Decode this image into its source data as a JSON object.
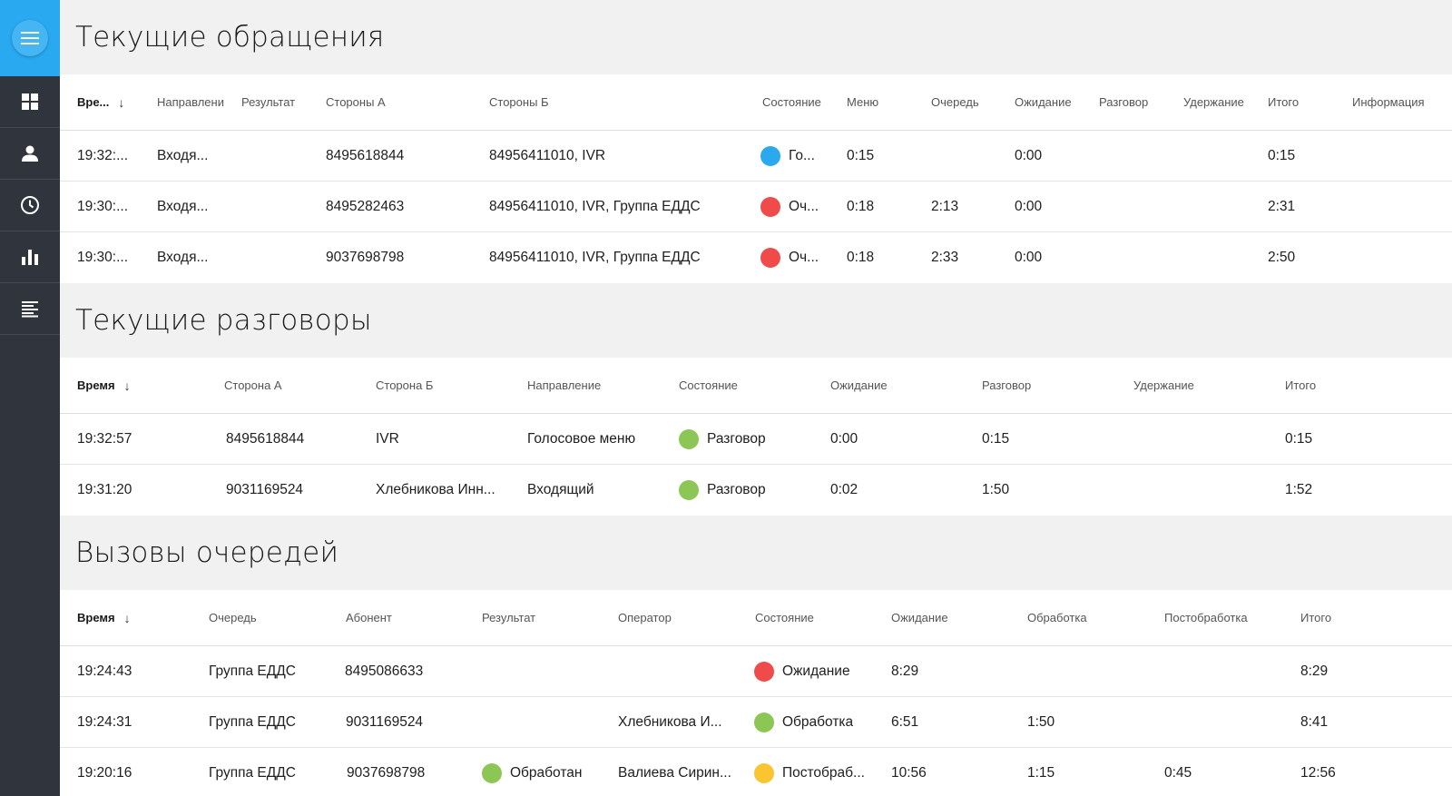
{
  "colors": {
    "accent": "#29a9f0",
    "sidebar": "#30343d",
    "status_blue": "#2aa9ef",
    "status_red": "#ef4b4b",
    "status_green": "#8cc755",
    "status_yellow": "#fbc531"
  },
  "sidebar": {
    "menu_icon": "hamburger-menu-icon",
    "items": [
      {
        "icon": "dashboard-grid-icon"
      },
      {
        "icon": "user-icon"
      },
      {
        "icon": "clock-icon"
      },
      {
        "icon": "bar-chart-icon"
      },
      {
        "icon": "text-lines-icon"
      }
    ]
  },
  "requests": {
    "title": "Текущие обращения",
    "headers": {
      "time": "Вре...",
      "direction": "Направлени",
      "result": "Результат",
      "party_a": "Стороны А",
      "party_b": "Стороны Б",
      "state": "Состояние",
      "menu": "Меню",
      "queue": "Очередь",
      "wait": "Ожидание",
      "talk": "Разговор",
      "hold": "Удержание",
      "total": "Итого",
      "info": "Информация"
    },
    "rows": [
      {
        "time": "19:32:...",
        "direction": "Входя...",
        "result": "",
        "party_a": "8495618844",
        "party_b": "84956411010, IVR",
        "state": "Го...",
        "state_color": "#2aa9ef",
        "menu": "0:15",
        "queue": "",
        "wait": "0:00",
        "talk": "",
        "hold": "",
        "total": "0:15"
      },
      {
        "time": "19:30:...",
        "direction": "Входя...",
        "result": "",
        "party_a": "8495282463",
        "party_b": "84956411010, IVR, Группа ЕДДС",
        "state": "Оч...",
        "state_color": "#ef4b4b",
        "menu": "0:18",
        "queue": "2:13",
        "wait": "0:00",
        "talk": "",
        "hold": "",
        "total": "2:31"
      },
      {
        "time": "19:30:...",
        "direction": "Входя...",
        "result": "",
        "party_a": "9037698798",
        "party_b": "84956411010, IVR, Группа ЕДДС",
        "state": "Оч...",
        "state_color": "#ef4b4b",
        "menu": "0:18",
        "queue": "2:33",
        "wait": "0:00",
        "talk": "",
        "hold": "",
        "total": "2:50"
      }
    ]
  },
  "calls": {
    "title": "Текущие разговоры",
    "headers": {
      "time": "Время",
      "party_a": "Сторона А",
      "party_b": "Сторона Б",
      "direction": "Направление",
      "state": "Состояние",
      "wait": "Ожидание",
      "talk": "Разговор",
      "hold": "Удержание",
      "total": "Итого"
    },
    "rows": [
      {
        "time": "19:32:57",
        "party_a": "8495618844",
        "party_b": "IVR",
        "direction": "Голосовое меню",
        "state": "Разговор",
        "state_color": "#8cc755",
        "wait": "0:00",
        "talk": "0:15",
        "hold": "",
        "total": "0:15"
      },
      {
        "time": "19:31:20",
        "party_a": "9031169524",
        "party_b": "Хлебникова Инн...",
        "direction": "Входящий",
        "state": "Разговор",
        "state_color": "#8cc755",
        "wait": "0:02",
        "talk": "1:50",
        "hold": "",
        "total": "1:52"
      }
    ]
  },
  "queues": {
    "title": "Вызовы очередей",
    "headers": {
      "time": "Время",
      "queue": "Очередь",
      "subscriber": "Абонент",
      "result": "Результат",
      "operator": "Оператор",
      "state": "Состояние",
      "wait": "Ожидание",
      "processing": "Обработка",
      "post": "Постобработка",
      "total": "Итого"
    },
    "rows": [
      {
        "time": "19:24:43",
        "queue": "Группа ЕДДС",
        "subscriber": "8495086633",
        "result": "",
        "result_color": "",
        "operator": "",
        "state": "Ожидание",
        "state_color": "#ef4b4b",
        "wait": "8:29",
        "processing": "",
        "post": "",
        "total": "8:29"
      },
      {
        "time": "19:24:31",
        "queue": "Группа ЕДДС",
        "subscriber": "9031169524",
        "result": "",
        "result_color": "",
        "operator": "Хлебникова И...",
        "state": "Обработка",
        "state_color": "#8cc755",
        "wait": "6:51",
        "processing": "1:50",
        "post": "",
        "total": "8:41"
      },
      {
        "time": "19:20:16",
        "queue": "Группа ЕДДС",
        "subscriber": "9037698798",
        "result": "Обработан",
        "result_color": "#8cc755",
        "operator": "Валиева Сирин...",
        "state": "Постобраб...",
        "state_color": "#fbc531",
        "wait": "10:56",
        "processing": "1:15",
        "post": "0:45",
        "total": "12:56"
      }
    ]
  }
}
